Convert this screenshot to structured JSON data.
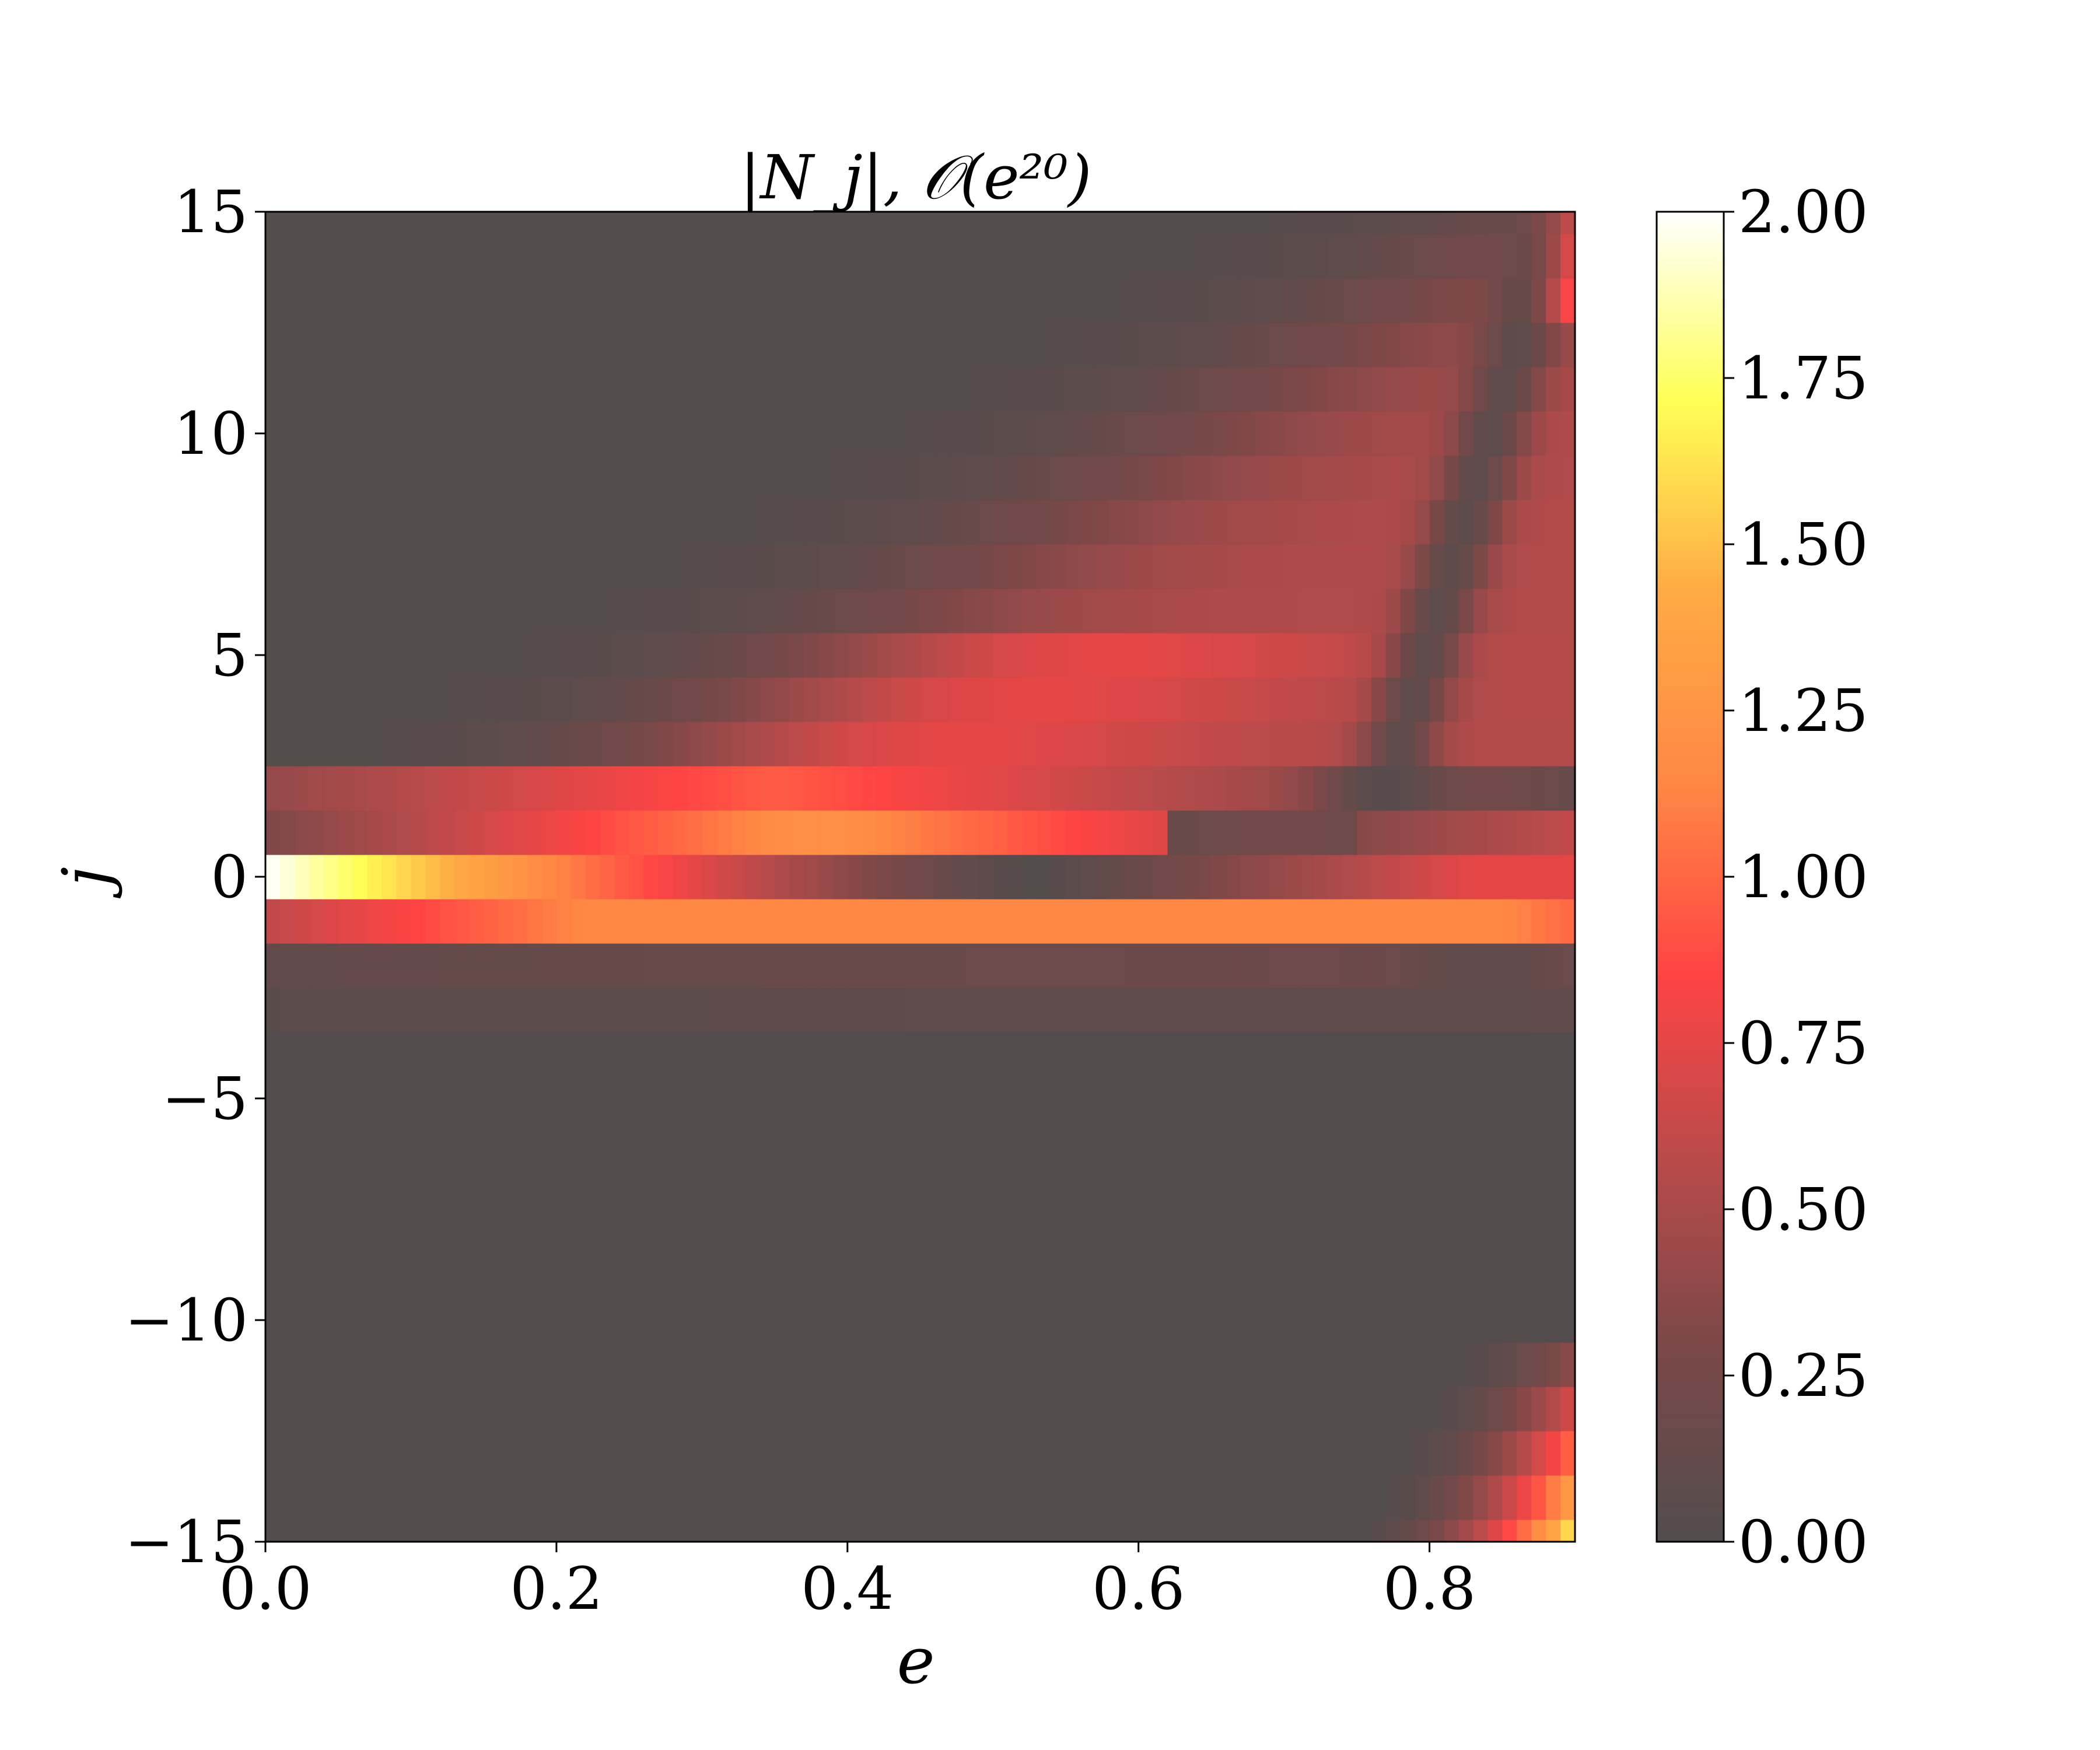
{
  "chart_data": {
    "type": "heatmap",
    "title": "|N_j|, 𝒪(e²⁰)",
    "xlabel": "e",
    "ylabel": "j",
    "xlim": [
      0.0,
      0.9
    ],
    "ylim": [
      -15,
      15
    ],
    "x_ticks": [
      "0.0",
      "0.2",
      "0.4",
      "0.6",
      "0.8"
    ],
    "y_ticks": [
      "15",
      "10",
      "5",
      "0",
      "−5",
      "−10",
      "−15"
    ],
    "colorbar": {
      "min": 0.0,
      "max": 2.0,
      "ticks": [
        "2.00",
        "1.75",
        "1.50",
        "1.25",
        "1.00",
        "0.75",
        "0.50",
        "0.25",
        "0.00"
      ],
      "colormap": "hot_r",
      "colors": [
        "#524c4c",
        "#7a4848",
        "#b84a4a",
        "#ff4444",
        "#ff8844",
        "#ffaa44",
        "#ffff55",
        "#ffffff"
      ]
    },
    "grid": false,
    "e_samples": 90,
    "j_range": [
      -15,
      15
    ],
    "notable_values": [
      {
        "j": 0,
        "e": 0.0,
        "value": 2.0
      },
      {
        "j": 0,
        "e": 0.15,
        "value": 1.6
      },
      {
        "j": 1,
        "e": 0.3,
        "value": 1.2
      },
      {
        "j": -1,
        "e": 0.5,
        "value": 1.15
      },
      {
        "j": 0,
        "e": 0.53,
        "value": 0.02
      },
      {
        "j": 12,
        "e": 0.8,
        "value": 0.55
      },
      {
        "j": -14,
        "e": 0.89,
        "value": 1.7
      }
    ]
  }
}
